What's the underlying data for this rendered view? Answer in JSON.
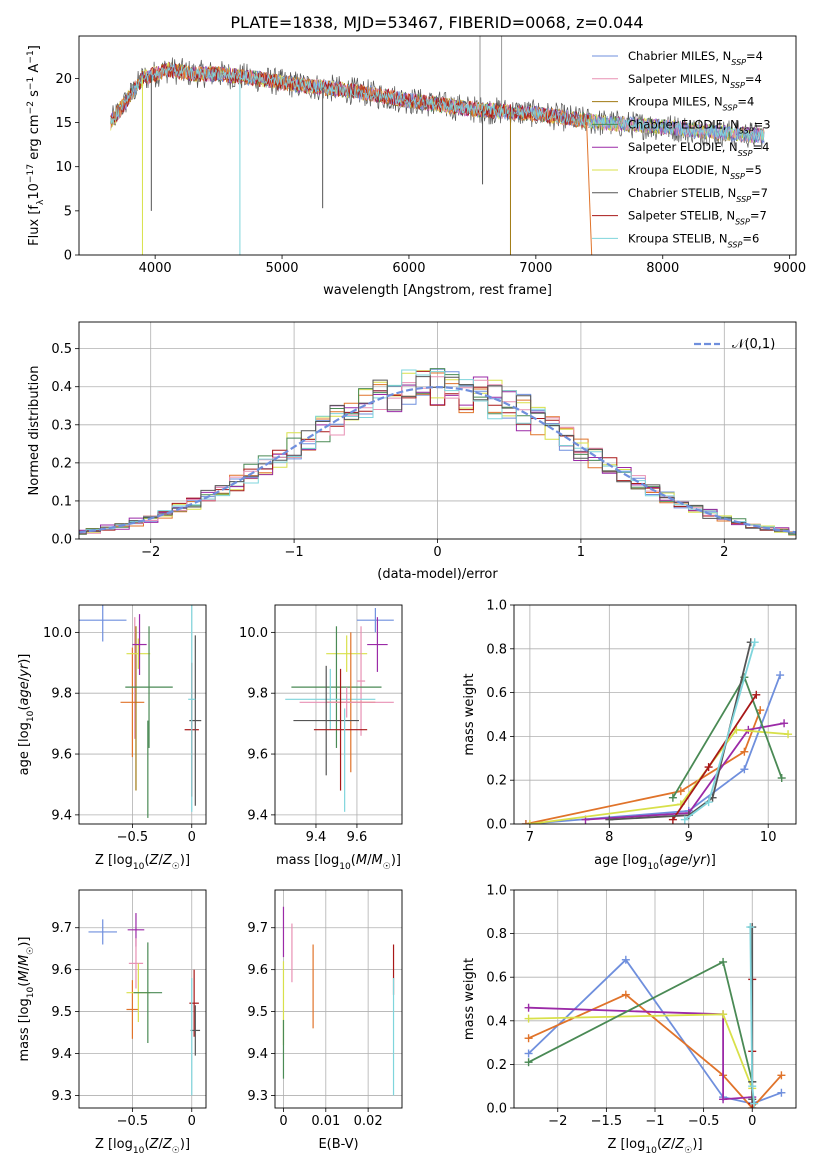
{
  "figure": {
    "title": "PLATE=1838, MJD=53467, FIBERID=0068, z=0.044"
  },
  "colors": {
    "Chabrier MILES": "#6f8fdd",
    "Salpeter MILES": "#e891b4",
    "Kroupa MILES": "#a07a12",
    "Chabrier ELODIE": "#4a8a55",
    "Salpeter ELODIE": "#9b2aa7",
    "Kroupa ELODIE": "#d8e04a",
    "Chabrier STELIB": "#555555",
    "Salpeter STELIB": "#a81818",
    "Kroupa STELIB": "#7fd5dc",
    "extra orange": "#e0732a",
    "normal curve": "#6f8fdd"
  },
  "chart_data": [
    {
      "id": "spectrum",
      "type": "line",
      "title": "PLATE=1838, MJD=53467, FIBERID=0068, z=0.044",
      "xlabel": "wavelength [Angstrom, rest frame]",
      "ylabel": "Flux [f_λ 10^-17 erg cm^-2 s^-1 A^-1]",
      "xlim": [
        3400,
        9050
      ],
      "ylim": [
        0,
        24.8
      ],
      "xticks": [
        4000,
        5000,
        6000,
        7000,
        8000,
        9000
      ],
      "yticks": [
        0,
        5,
        10,
        15,
        20
      ],
      "legend": "upper right",
      "series": [
        {
          "name": "Chabrier MILES, N_SSP=4"
        },
        {
          "name": "Salpeter MILES, N_SSP=4"
        },
        {
          "name": "Kroupa MILES, N_SSP=4"
        },
        {
          "name": "Chabrier ELODIE, N_SSP=3"
        },
        {
          "name": "Salpeter ELODIE, N_SSP=4"
        },
        {
          "name": "Kroupa ELODIE, N_SSP=5"
        },
        {
          "name": "Chabrier STELIB, N_SSP=7"
        },
        {
          "name": "Salpeter STELIB, N_SSP=7"
        },
        {
          "name": "Kroupa STELIB, N_SSP=6"
        }
      ],
      "continuum": {
        "x": [
          3650,
          3700,
          3800,
          3900,
          4000,
          4100,
          4300,
          4500,
          4800,
          5000,
          5300,
          5600,
          6000,
          6500,
          7000,
          7500,
          8000,
          8500,
          8800
        ],
        "y": [
          15,
          16,
          18,
          20,
          20.5,
          21,
          20.5,
          20.5,
          20,
          19.5,
          19,
          18.5,
          17.5,
          16.5,
          16,
          15,
          14.5,
          13.8,
          13.5
        ]
      }
    },
    {
      "id": "residuals",
      "type": "line",
      "xlabel": "(data-model)/error",
      "ylabel": "Normed distribution",
      "xlim": [
        -2.5,
        2.5
      ],
      "ylim": [
        0,
        0.57
      ],
      "xticks": [
        -2,
        -1,
        0,
        1,
        2
      ],
      "yticks": [
        0.0,
        0.1,
        0.2,
        0.3,
        0.4,
        0.5
      ],
      "legend": "upper right",
      "normal_label": "𝒩(0,1)",
      "grid": true
    },
    {
      "id": "age-vs-Z",
      "type": "scatter",
      "xlabel": "Z [log10(Z/Z☉)]",
      "ylabel": "age [log10(age/yr)]",
      "xlim": [
        -0.95,
        0.12
      ],
      "ylim": [
        9.37,
        10.09
      ],
      "xticks": [
        -0.5,
        0.0
      ],
      "yticks": [
        9.4,
        9.6,
        9.8,
        10.0
      ],
      "points": [
        {
          "x": -0.75,
          "y": 10.04,
          "xerr": 0.2,
          "yerr": 0.07,
          "c": "Chabrier MILES"
        },
        {
          "x": -0.48,
          "y": 9.85,
          "xerr": 0.0,
          "yerr": 0.2,
          "c": "Salpeter MILES"
        },
        {
          "x": -0.5,
          "y": 9.77,
          "xerr": 0.1,
          "yerr": 0.18,
          "c": "extra orange"
        },
        {
          "x": -0.47,
          "y": 9.75,
          "xerr": 0.0,
          "yerr": 0.27,
          "c": "Kroupa MILES"
        },
        {
          "x": -0.45,
          "y": 9.93,
          "xerr": 0.1,
          "yerr": 0.05,
          "c": "Kroupa ELODIE"
        },
        {
          "x": -0.44,
          "y": 9.96,
          "xerr": 0.06,
          "yerr": 0.1,
          "c": "Salpeter ELODIE"
        },
        {
          "x": -0.36,
          "y": 9.82,
          "xerr": 0.2,
          "yerr": 0.2,
          "c": "Chabrier ELODIE"
        },
        {
          "x": -0.37,
          "y": 9.55,
          "xerr": 0.0,
          "yerr": 0.16,
          "c": "Chabrier ELODIE"
        },
        {
          "x": 0.0,
          "y": 9.68,
          "xerr": 0.06,
          "yerr": 0.22,
          "c": "Salpeter STELIB"
        },
        {
          "x": 0.03,
          "y": 9.71,
          "xerr": 0.05,
          "yerr": 0.28,
          "c": "Chabrier STELIB"
        },
        {
          "x": 0.0,
          "y": 9.78,
          "xerr": 0.03,
          "yerr": 0.37,
          "c": "Kroupa STELIB"
        }
      ]
    },
    {
      "id": "age-vs-mass",
      "type": "scatter",
      "xlabel": "mass [log10(M/M☉)]",
      "ylabel": "",
      "xlim": [
        9.2,
        9.82
      ],
      "ylim": [
        9.37,
        10.09
      ],
      "xticks": [
        9.4,
        9.6
      ],
      "yticks": [
        9.4,
        9.6,
        9.8,
        10.0
      ],
      "points": [
        {
          "x": 9.69,
          "y": 10.04,
          "xerr": 0.09,
          "yerr": 0.04,
          "c": "Chabrier MILES"
        },
        {
          "x": 9.7,
          "y": 9.96,
          "xerr": 0.05,
          "yerr": 0.09,
          "c": "Salpeter ELODIE"
        },
        {
          "x": 9.55,
          "y": 9.93,
          "xerr": 0.1,
          "yerr": 0.06,
          "c": "Kroupa ELODIE"
        },
        {
          "x": 9.62,
          "y": 9.84,
          "xerr": 0.02,
          "yerr": 0.18,
          "c": "Salpeter MILES"
        },
        {
          "x": 9.5,
          "y": 9.82,
          "xerr": 0.22,
          "yerr": 0.2,
          "c": "Chabrier ELODIE"
        },
        {
          "x": 9.47,
          "y": 9.78,
          "xerr": 0.22,
          "yerr": 0.1,
          "c": "Kroupa STELIB"
        },
        {
          "x": 9.57,
          "y": 9.77,
          "xerr": 0.12,
          "yerr": 0.23,
          "c": "extra orange"
        },
        {
          "x": 9.55,
          "y": 9.77,
          "xerr": 0.23,
          "yerr": 0.05,
          "c": "Salpeter MILES"
        },
        {
          "x": 9.45,
          "y": 9.71,
          "xerr": 0.16,
          "yerr": 0.18,
          "c": "Chabrier STELIB"
        },
        {
          "x": 9.52,
          "y": 9.68,
          "xerr": 0.13,
          "yerr": 0.2,
          "c": "Salpeter STELIB"
        },
        {
          "x": 9.54,
          "y": 9.58,
          "xerr": 0.0,
          "yerr": 0.17,
          "c": "Kroupa STELIB"
        }
      ]
    },
    {
      "id": "weight-vs-age",
      "type": "line",
      "xlabel": "age [log10(age/yr)]",
      "ylabel": "mass weight",
      "xlim": [
        6.8,
        10.35
      ],
      "ylim": [
        0,
        1
      ],
      "xticks": [
        7,
        8,
        9,
        10
      ],
      "yticks": [
        0.0,
        0.2,
        0.4,
        0.6,
        0.8,
        1.0
      ],
      "grid": true,
      "series": [
        {
          "c": "Chabrier MILES",
          "x": [
            6.95,
            9.0,
            9.7,
            10.15
          ],
          "y": [
            0.0,
            0.06,
            0.25,
            0.68
          ]
        },
        {
          "c": "extra orange",
          "x": [
            6.95,
            8.9,
            9.7,
            9.9
          ],
          "y": [
            0.0,
            0.15,
            0.33,
            0.52
          ]
        },
        {
          "c": "Salpeter ELODIE",
          "x": [
            7.7,
            9.0,
            9.75,
            10.2
          ],
          "y": [
            0.02,
            0.05,
            0.43,
            0.46
          ]
        },
        {
          "c": "Kroupa ELODIE",
          "x": [
            7.0,
            8.9,
            9.6,
            10.25
          ],
          "y": [
            0.0,
            0.09,
            0.43,
            0.41
          ]
        },
        {
          "c": "Chabrier ELODIE",
          "x": [
            8.8,
            9.7,
            10.17
          ],
          "y": [
            0.12,
            0.67,
            0.21
          ]
        },
        {
          "c": "Salpeter STELIB",
          "x": [
            8.8,
            9.25,
            9.85
          ],
          "y": [
            0.02,
            0.26,
            0.59
          ]
        },
        {
          "c": "Chabrier STELIB",
          "x": [
            8.0,
            9.0,
            9.3,
            9.78
          ],
          "y": [
            0.02,
            0.04,
            0.12,
            0.83
          ]
        },
        {
          "c": "Kroupa STELIB",
          "x": [
            8.95,
            9.25,
            9.83
          ],
          "y": [
            0.02,
            0.1,
            0.83
          ]
        }
      ]
    },
    {
      "id": "mass-vs-Z",
      "type": "scatter",
      "xlabel": "Z [log10(Z/Z☉)]",
      "ylabel": "mass [log10(M/M☉)]",
      "xlim": [
        -0.95,
        0.12
      ],
      "ylim": [
        9.27,
        9.79
      ],
      "xticks": [
        -0.5,
        0.0
      ],
      "yticks": [
        9.3,
        9.4,
        9.5,
        9.6,
        9.7
      ],
      "points": [
        {
          "x": -0.75,
          "y": 9.69,
          "xerr": 0.12,
          "yerr": 0.03,
          "c": "Chabrier MILES"
        },
        {
          "x": -0.47,
          "y": 9.695,
          "xerr": 0.07,
          "yerr": 0.04,
          "c": "Salpeter ELODIE"
        },
        {
          "x": -0.47,
          "y": 9.615,
          "xerr": 0.06,
          "yerr": 0.06,
          "c": "Salpeter MILES"
        },
        {
          "x": -0.5,
          "y": 9.505,
          "xerr": 0.05,
          "yerr": 0.07,
          "c": "extra orange"
        },
        {
          "x": -0.45,
          "y": 9.545,
          "xerr": 0.1,
          "yerr": 0.07,
          "c": "Kroupa ELODIE"
        },
        {
          "x": -0.37,
          "y": 9.545,
          "xerr": 0.12,
          "yerr": 0.12,
          "c": "Chabrier ELODIE"
        },
        {
          "x": 0.02,
          "y": 9.52,
          "xerr": 0.04,
          "yerr": 0.08,
          "c": "Salpeter STELIB"
        },
        {
          "x": 0.03,
          "y": 9.455,
          "xerr": 0.04,
          "yerr": 0.06,
          "c": "Chabrier STELIB"
        },
        {
          "x": 0.0,
          "y": 9.44,
          "xerr": 0.0,
          "yerr": 0.14,
          "c": "Kroupa STELIB"
        }
      ]
    },
    {
      "id": "mass-vs-EBV",
      "type": "scatter",
      "xlabel": "E(B-V)",
      "ylabel": "",
      "xlim": [
        -0.002,
        0.028
      ],
      "ylim": [
        9.27,
        9.79
      ],
      "xticks": [
        0.0,
        0.01,
        0.02
      ],
      "yticks": [
        9.3,
        9.4,
        9.5,
        9.6,
        9.7
      ],
      "points": [
        {
          "x": 0.0,
          "y": 9.69,
          "xerr": 0.0,
          "yerr": 0.06,
          "c": "Salpeter ELODIE"
        },
        {
          "x": 0.0,
          "y": 9.52,
          "xerr": 0.0,
          "yerr": 0.1,
          "c": "Kroupa ELODIE"
        },
        {
          "x": 0.0,
          "y": 9.41,
          "xerr": 0.0,
          "yerr": 0.07,
          "c": "Chabrier ELODIE"
        },
        {
          "x": 0.002,
          "y": 9.64,
          "xerr": 0.0,
          "yerr": 0.07,
          "c": "Salpeter MILES"
        },
        {
          "x": 0.007,
          "y": 9.56,
          "xerr": 0.0,
          "yerr": 0.1,
          "c": "extra orange"
        },
        {
          "x": 0.026,
          "y": 9.6,
          "xerr": 0.0,
          "yerr": 0.06,
          "c": "Salpeter STELIB"
        },
        {
          "x": 0.026,
          "y": 9.44,
          "xerr": 0.0,
          "yerr": 0.14,
          "c": "Kroupa STELIB"
        }
      ]
    },
    {
      "id": "weight-vs-Z",
      "type": "line",
      "xlabel": "Z [log10(Z/Z☉)]",
      "ylabel": "mass weight",
      "xlim": [
        -2.45,
        0.45
      ],
      "ylim": [
        0,
        1
      ],
      "xticks": [
        -2.0,
        -1.5,
        -1.0,
        -0.5,
        0.0
      ],
      "yticks": [
        0.0,
        0.2,
        0.4,
        0.6,
        0.8,
        1.0
      ],
      "grid": true,
      "series": [
        {
          "c": "Chabrier MILES",
          "x": [
            -2.3,
            -1.3,
            -0.3,
            0.0,
            0.3
          ],
          "y": [
            0.25,
            0.68,
            0.05,
            0.02,
            0.07
          ]
        },
        {
          "c": "extra orange",
          "x": [
            -2.3,
            -1.3,
            -0.3,
            0.0,
            0.3
          ],
          "y": [
            0.32,
            0.52,
            0.15,
            0.0,
            0.15
          ]
        },
        {
          "c": "Salpeter ELODIE",
          "x": [
            -2.3,
            -0.3,
            -0.3,
            0.0
          ],
          "y": [
            0.46,
            0.43,
            0.04,
            0.05
          ]
        },
        {
          "c": "Kroupa ELODIE",
          "x": [
            -2.3,
            -0.3,
            0.0
          ],
          "y": [
            0.41,
            0.43,
            0.09
          ]
        },
        {
          "c": "Chabrier ELODIE",
          "x": [
            -2.3,
            -0.3,
            0.0
          ],
          "y": [
            0.21,
            0.67,
            0.12
          ]
        },
        {
          "c": "Salpeter STELIB",
          "x": [
            0.0,
            0.0,
            0.0
          ],
          "y": [
            0.59,
            0.26,
            0.02
          ]
        },
        {
          "c": "Chabrier STELIB",
          "x": [
            0.0,
            0.0,
            0.0
          ],
          "y": [
            0.83,
            0.12,
            0.04
          ]
        },
        {
          "c": "Kroupa STELIB",
          "x": [
            -0.02,
            0.0,
            0.02
          ],
          "y": [
            0.83,
            0.1,
            0.02
          ]
        }
      ]
    }
  ]
}
